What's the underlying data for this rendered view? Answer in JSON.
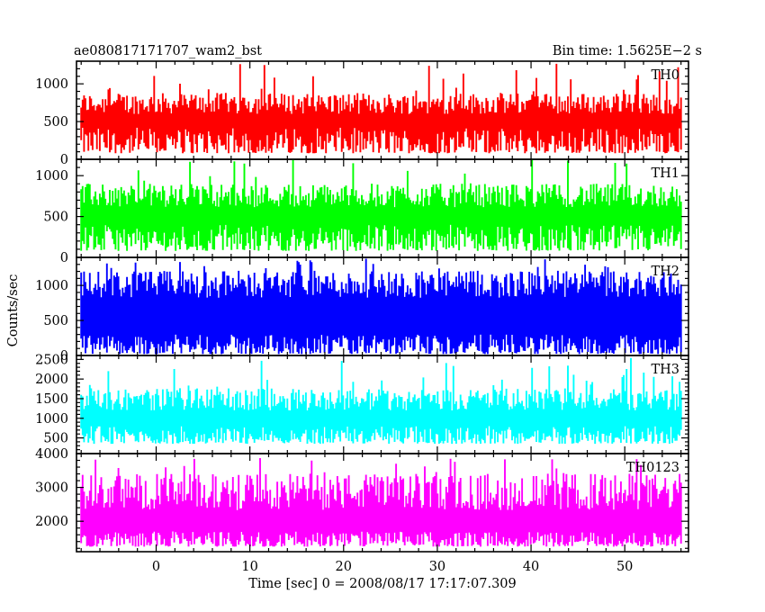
{
  "header": {
    "title": "ae080817171707_wam2_bst",
    "bin_time": "Bin time: 1.5625E−2 s"
  },
  "chart_data": {
    "type": "line",
    "xlabel": "Time [sec] 0 = 2008/08/17 17:17:07.309",
    "ylabel": "Counts/sec",
    "xlim": [
      -8.5,
      56.8
    ],
    "x_range_data": [
      -8.0,
      56.0
    ],
    "x_ticks": [
      "0",
      "10",
      "20",
      "30",
      "40",
      "50"
    ],
    "x_tick_values": [
      0,
      10,
      20,
      30,
      40,
      50
    ],
    "panels": [
      {
        "name": "TH0",
        "color": "#ff0000",
        "ylim": [
          0,
          1300
        ],
        "yticks": [
          "0",
          "500",
          "1000"
        ],
        "ytick_values": [
          0,
          500,
          1000
        ],
        "base_low": 80,
        "base_high": 420,
        "mean_high": 800,
        "peak": 1300
      },
      {
        "name": "TH1",
        "color": "#00ff00",
        "ylim": [
          0,
          1200
        ],
        "yticks": [
          "0",
          "500",
          "1000"
        ],
        "ytick_values": [
          0,
          500,
          1000
        ],
        "base_low": 80,
        "base_high": 400,
        "mean_high": 820,
        "peak": 1200
      },
      {
        "name": "TH2",
        "color": "#0000ff",
        "ylim": [
          0,
          1400
        ],
        "yticks": [
          "0",
          "500",
          "1000"
        ],
        "ytick_values": [
          0,
          500,
          1000
        ],
        "base_low": 20,
        "base_high": 300,
        "mean_high": 1100,
        "peak": 1400
      },
      {
        "name": "TH3",
        "color": "#00ffff",
        "ylim": [
          100,
          2600
        ],
        "yticks": [
          "500",
          "1000",
          "1500",
          "2000",
          "2500"
        ],
        "ytick_values": [
          500,
          1000,
          1500,
          2000,
          2500
        ],
        "base_low": 350,
        "base_high": 800,
        "mean_high": 1600,
        "peak": 2550
      },
      {
        "name": "TH0123",
        "color": "#ff00ff",
        "ylim": [
          1100,
          4000
        ],
        "yticks": [
          "2000",
          "3000",
          "4000"
        ],
        "ytick_values": [
          2000,
          3000,
          4000
        ],
        "base_low": 1250,
        "base_high": 1700,
        "mean_high": 3100,
        "peak": 3900
      }
    ]
  }
}
